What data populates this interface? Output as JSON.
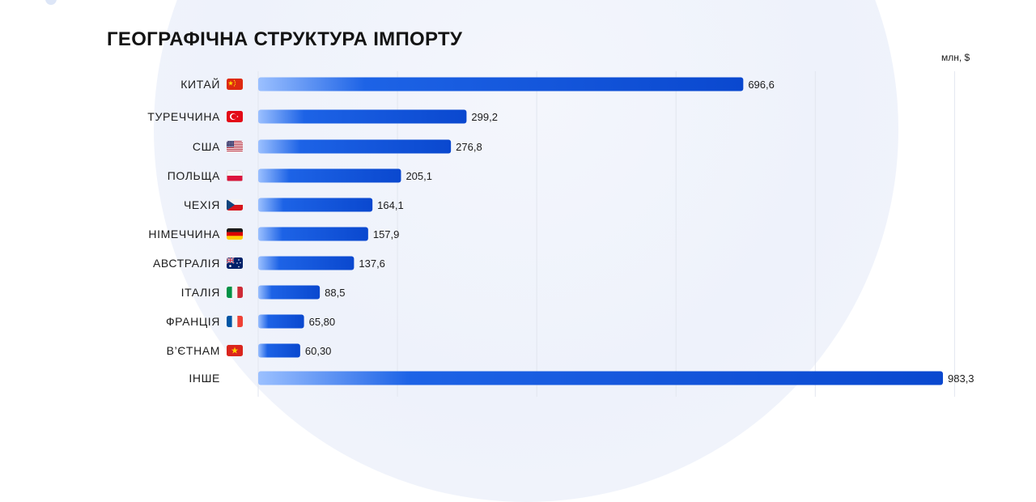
{
  "title": "ГЕОГРАФІЧНА СТРУКТУРА ІМПОРТУ",
  "unit": "млн, $",
  "colors": {
    "bar_start": "#9bc0ff",
    "bar_mid": "#1d63e6",
    "bar_end": "#0a48cf",
    "grid": "#e2e6ef"
  },
  "chart_data": {
    "type": "bar",
    "orientation": "horizontal",
    "title": "ГЕОГРАФІЧНА СТРУКТУРА ІМПОРТУ",
    "unit": "млн, $",
    "xlim": [
      0,
      1000
    ],
    "grid": true,
    "categories": [
      "КИТАЙ",
      "ТУРЕЧЧИНА",
      "США",
      "ПОЛЬЩА",
      "ЧЕХІЯ",
      "НІМЕЧЧИНА",
      "АВСТРАЛІЯ",
      "ІТАЛІЯ",
      "ФРАНЦІЯ",
      "В’ЄТНАМ",
      "ІНШЕ"
    ],
    "flags": [
      "china-flag-icon",
      "turkey-flag-icon",
      "usa-flag-icon",
      "poland-flag-icon",
      "czechia-flag-icon",
      "germany-flag-icon",
      "australia-flag-icon",
      "italy-flag-icon",
      "france-flag-icon",
      "vietnam-flag-icon",
      ""
    ],
    "values": [
      696.6,
      299.2,
      276.8,
      205.1,
      164.1,
      157.9,
      137.6,
      88.5,
      65.8,
      60.3,
      983.3
    ],
    "value_labels": [
      "696,6",
      "299,2",
      "276,8",
      "205,1",
      "164,1",
      "157,9",
      "137,6",
      "88,5",
      "65,80",
      "60,30",
      "983,3"
    ]
  }
}
